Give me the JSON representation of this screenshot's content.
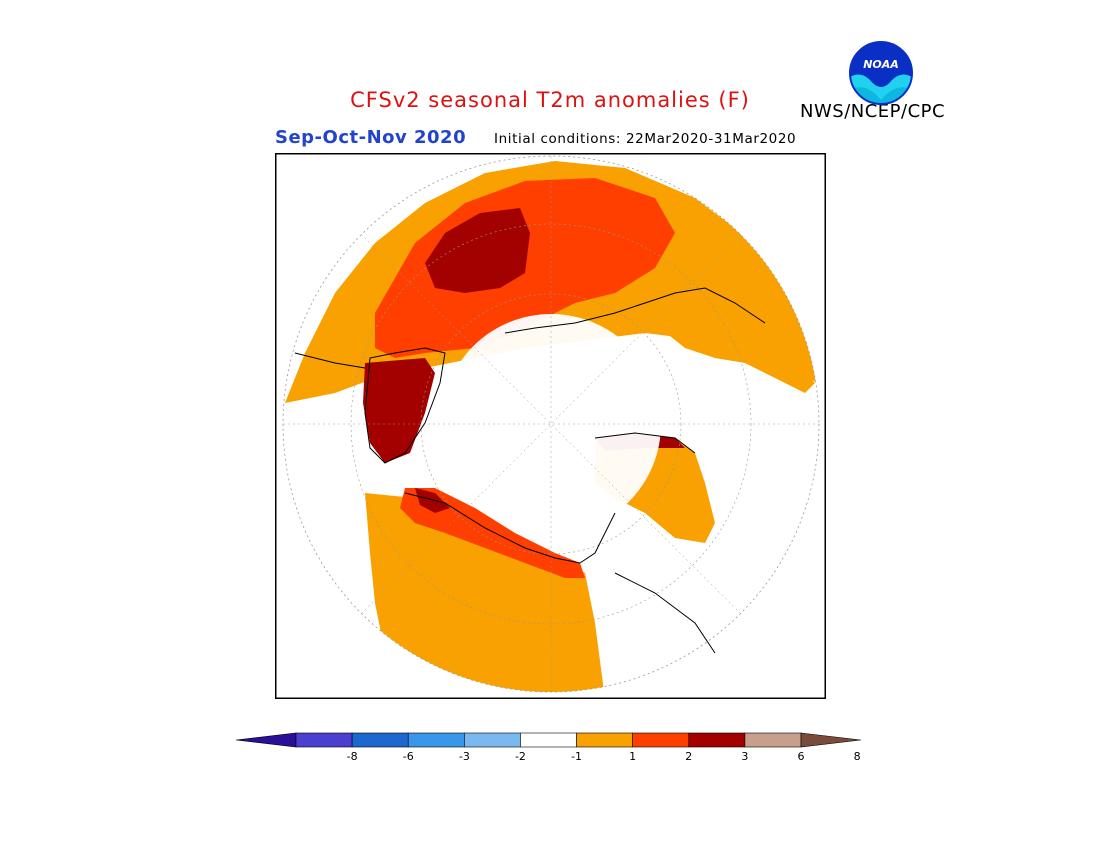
{
  "header": {
    "title": "CFSv2 seasonal T2m anomalies (F)",
    "organization": "NWS/NCEP/CPC",
    "logo_text": "NOAA",
    "period": "Sep-Oct-Nov 2020",
    "initial_conditions": "Initial conditions: 22Mar2020-31Mar2020"
  },
  "colors": {
    "title": "#dd1111",
    "period": "#2244cc",
    "frame": "#000000"
  },
  "legend": {
    "tick_labels": [
      "-8",
      "-6",
      "-3",
      "-2",
      "-1",
      "1",
      "2",
      "3",
      "6",
      "8"
    ],
    "bins": [
      {
        "color": "#2a0f99"
      },
      {
        "color": "#4a3fcf"
      },
      {
        "color": "#1d68cf"
      },
      {
        "color": "#3a96e8"
      },
      {
        "color": "#7ab8f0"
      },
      {
        "color": "#ffffff"
      },
      {
        "color": "#f8a100"
      },
      {
        "color": "#ff3f00"
      },
      {
        "color": "#a30000"
      },
      {
        "color": "#c89e8d"
      },
      {
        "color": "#7a4a3a"
      }
    ]
  }
}
